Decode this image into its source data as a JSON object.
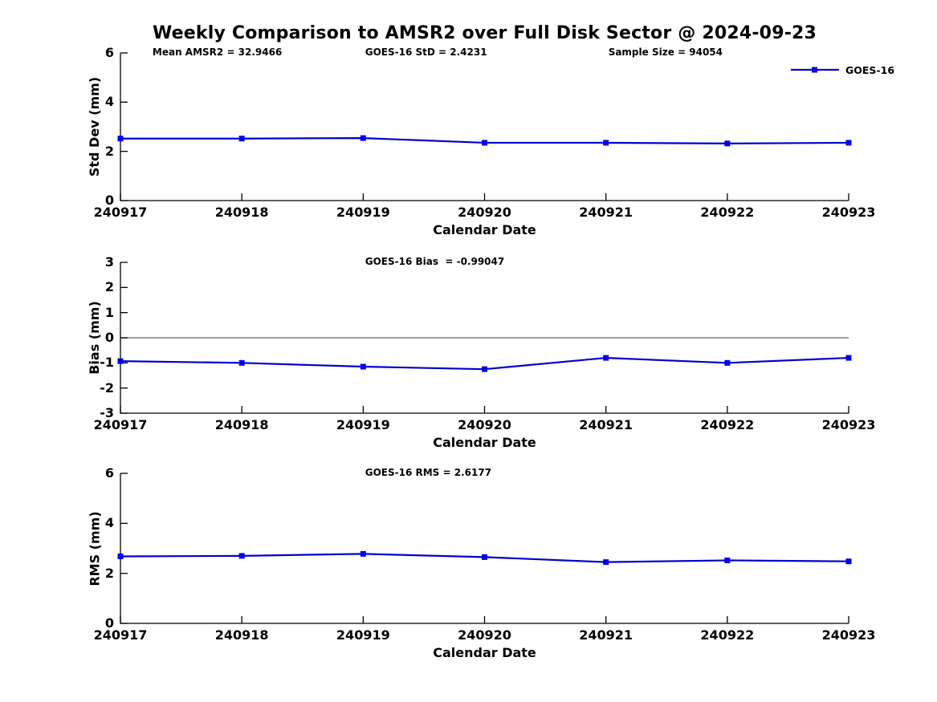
{
  "title": "Weekly Comparison to AMSR2 over Full Disk Sector @ 2024-09-23",
  "legend": {
    "label": "GOES-16"
  },
  "colors": {
    "series_line": "#0000d0",
    "series_marker": "#0000ee",
    "zero_line": "#808080",
    "axis": "#000000"
  },
  "chart_data": [
    {
      "type": "line",
      "name": "std_dev",
      "ylabel": "Std Dev (mm)",
      "xlabel": "Calendar Date",
      "ylim": [
        0,
        6
      ],
      "yticks": [
        0,
        2,
        4,
        6
      ],
      "grid": false,
      "legend_position": "top-right-outside",
      "annotations": [
        "Mean AMSR2 = 32.9466",
        "GOES-16 StD = 2.4231",
        "Sample Size = 94054"
      ],
      "categories": [
        "240917",
        "240918",
        "240919",
        "240920",
        "240921",
        "240922",
        "240923"
      ],
      "series": [
        {
          "name": "GOES-16",
          "values": [
            2.52,
            2.52,
            2.54,
            2.35,
            2.35,
            2.32,
            2.35
          ]
        }
      ]
    },
    {
      "type": "line",
      "name": "bias",
      "ylabel": "Bias (mm)",
      "xlabel": "Calendar Date",
      "ylim": [
        -3,
        3
      ],
      "yticks": [
        3,
        2,
        1,
        0,
        -1,
        -2,
        -3
      ],
      "grid": false,
      "zero_line": true,
      "annotations": [
        "GOES-16 Bias  = -0.99047"
      ],
      "categories": [
        "240917",
        "240918",
        "240919",
        "240920",
        "240921",
        "240922",
        "240923"
      ],
      "series": [
        {
          "name": "GOES-16",
          "values": [
            -0.93,
            -1.0,
            -1.15,
            -1.25,
            -0.8,
            -1.0,
            -0.8
          ]
        }
      ]
    },
    {
      "type": "line",
      "name": "rms",
      "ylabel": "RMS (mm)",
      "xlabel": "Calendar Date",
      "ylim": [
        0,
        6
      ],
      "yticks": [
        0,
        2,
        4,
        6
      ],
      "grid": false,
      "annotations": [
        "GOES-16 RMS = 2.6177"
      ],
      "categories": [
        "240917",
        "240918",
        "240919",
        "240920",
        "240921",
        "240922",
        "240923"
      ],
      "series": [
        {
          "name": "GOES-16",
          "values": [
            2.68,
            2.7,
            2.78,
            2.65,
            2.45,
            2.52,
            2.48
          ]
        }
      ]
    }
  ]
}
